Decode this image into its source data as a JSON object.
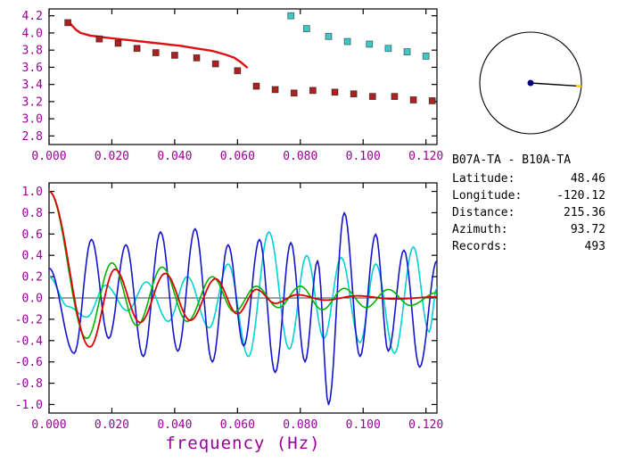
{
  "colors": {
    "axis_text": "#990099",
    "frame": "#000000",
    "compass_dot": "#000080",
    "compass_tick": "#ffc800"
  },
  "info_panel": {
    "station_pair": "B07A-TA - B10A-TA",
    "rows": [
      {
        "label": "Latitude:",
        "value": "48.46"
      },
      {
        "label": "Longitude:",
        "value": "-120.12"
      },
      {
        "label": "Distance:",
        "value": "215.36"
      },
      {
        "label": "Azimuth:",
        "value": "93.72"
      },
      {
        "label": "Records:",
        "value": "493"
      }
    ]
  },
  "compass": {
    "azimuth_deg": 93.72
  },
  "chart_data": [
    {
      "id": "dispersion",
      "type": "scatter",
      "title": "",
      "xlabel": "",
      "ylabel": "",
      "xlim": [
        0,
        0.1235
      ],
      "ylim": [
        2.7,
        4.28
      ],
      "grid": false,
      "xtick_values": [
        0.0,
        0.02,
        0.04,
        0.06,
        0.08,
        0.1,
        0.12
      ],
      "xtick_labels": [
        "0.000",
        "0.020",
        "0.040",
        "0.060",
        "0.080",
        "0.100",
        "0.120"
      ],
      "ytick_values": [
        2.8,
        3.0,
        3.2,
        3.4,
        3.6,
        3.8,
        4.0,
        4.2
      ],
      "ytick_labels": [
        "2.8",
        "3.0",
        "3.2",
        "3.4",
        "3.6",
        "3.8",
        "4.0",
        "4.2"
      ],
      "series": [
        {
          "name": "reference-curve",
          "kind": "line",
          "color": "#dd1111",
          "width": 2.4,
          "points": [
            [
              0.007,
              4.1
            ],
            [
              0.0085,
              4.04
            ],
            [
              0.01,
              4.0
            ],
            [
              0.013,
              3.97
            ],
            [
              0.017,
              3.95
            ],
            [
              0.022,
              3.93
            ],
            [
              0.027,
              3.91
            ],
            [
              0.032,
              3.89
            ],
            [
              0.037,
              3.87
            ],
            [
              0.042,
              3.85
            ],
            [
              0.047,
              3.82
            ],
            [
              0.052,
              3.79
            ],
            [
              0.056,
              3.75
            ],
            [
              0.059,
              3.71
            ],
            [
              0.061,
              3.66
            ],
            [
              0.063,
              3.6
            ]
          ]
        },
        {
          "name": "measured-dispersion",
          "kind": "squares",
          "color": "#aa2222",
          "size": 7,
          "points": [
            [
              0.006,
              4.12
            ],
            [
              0.016,
              3.93
            ],
            [
              0.022,
              3.88
            ],
            [
              0.028,
              3.82
            ],
            [
              0.034,
              3.77
            ],
            [
              0.04,
              3.74
            ],
            [
              0.047,
              3.71
            ],
            [
              0.053,
              3.64
            ],
            [
              0.06,
              3.56
            ],
            [
              0.066,
              3.38
            ],
            [
              0.072,
              3.34
            ],
            [
              0.078,
              3.3
            ],
            [
              0.084,
              3.33
            ],
            [
              0.091,
              3.31
            ],
            [
              0.097,
              3.29
            ],
            [
              0.103,
              3.26
            ],
            [
              0.11,
              3.26
            ],
            [
              0.116,
              3.22
            ],
            [
              0.122,
              3.21
            ]
          ]
        },
        {
          "name": "secondary-dispersion",
          "kind": "squares",
          "color": "#3fc8c8",
          "size": 7,
          "points": [
            [
              0.077,
              4.2
            ],
            [
              0.082,
              4.05
            ],
            [
              0.089,
              3.96
            ],
            [
              0.095,
              3.9
            ],
            [
              0.102,
              3.87
            ],
            [
              0.108,
              3.82
            ],
            [
              0.114,
              3.78
            ],
            [
              0.12,
              3.73
            ]
          ]
        }
      ]
    },
    {
      "id": "waveforms",
      "type": "line",
      "title": "",
      "xlabel": "frequency (Hz)",
      "ylabel": "",
      "xlim": [
        0,
        0.1235
      ],
      "ylim": [
        -1.08,
        1.08
      ],
      "grid": false,
      "zero_line": true,
      "xtick_values": [
        0.0,
        0.02,
        0.04,
        0.06,
        0.08,
        0.1,
        0.12
      ],
      "xtick_labels": [
        "0.000",
        "0.020",
        "0.040",
        "0.060",
        "0.080",
        "0.100",
        "0.120"
      ],
      "ytick_values": [
        -1.0,
        -0.8,
        -0.6,
        -0.4,
        -0.2,
        0.0,
        0.2,
        0.4,
        0.6,
        0.8,
        1.0
      ],
      "ytick_labels": [
        "-1.0",
        "-0.8",
        "-0.6",
        "-0.4",
        "-0.2",
        "0.0",
        "0.2",
        "0.4",
        "0.6",
        "0.8",
        "1.0"
      ],
      "series": [
        {
          "name": "trace-cyan",
          "kind": "wave",
          "color": "#00d2d2",
          "width": 1.6,
          "points": [
            [
              0,
              0.2
            ],
            [
              0.006,
              -0.08
            ],
            [
              0.012,
              -0.18
            ],
            [
              0.018,
              0.12
            ],
            [
              0.025,
              -0.12
            ],
            [
              0.031,
              0.15
            ],
            [
              0.038,
              -0.22
            ],
            [
              0.044,
              0.2
            ],
            [
              0.051,
              -0.28
            ],
            [
              0.057,
              0.32
            ],
            [
              0.0635,
              -0.55
            ],
            [
              0.07,
              0.62
            ],
            [
              0.0765,
              -0.48
            ],
            [
              0.082,
              0.4
            ],
            [
              0.0875,
              -0.38
            ],
            [
              0.093,
              0.38
            ],
            [
              0.099,
              -0.42
            ],
            [
              0.104,
              0.32
            ],
            [
              0.11,
              -0.52
            ],
            [
              0.116,
              0.48
            ],
            [
              0.121,
              -0.32
            ],
            [
              0.1235,
              0.1
            ]
          ]
        },
        {
          "name": "trace-blue",
          "kind": "wave",
          "color": "#1414cc",
          "width": 1.6,
          "points": [
            [
              0,
              0.28
            ],
            [
              0.008,
              -0.52
            ],
            [
              0.0135,
              0.55
            ],
            [
              0.019,
              -0.38
            ],
            [
              0.0245,
              0.5
            ],
            [
              0.03,
              -0.55
            ],
            [
              0.0355,
              0.62
            ],
            [
              0.041,
              -0.5
            ],
            [
              0.0465,
              0.65
            ],
            [
              0.052,
              -0.6
            ],
            [
              0.057,
              0.5
            ],
            [
              0.062,
              -0.45
            ],
            [
              0.067,
              0.55
            ],
            [
              0.072,
              -0.7
            ],
            [
              0.077,
              0.52
            ],
            [
              0.0815,
              -0.6
            ],
            [
              0.0855,
              0.35
            ],
            [
              0.089,
              -1.0
            ],
            [
              0.094,
              0.8
            ],
            [
              0.099,
              -0.55
            ],
            [
              0.104,
              0.6
            ],
            [
              0.108,
              -0.5
            ],
            [
              0.113,
              0.45
            ],
            [
              0.118,
              -0.65
            ],
            [
              0.1235,
              0.35
            ]
          ]
        },
        {
          "name": "trace-green",
          "kind": "wave",
          "color": "#00b400",
          "width": 1.6,
          "points": [
            [
              0,
              1.0
            ],
            [
              0.012,
              -0.38
            ],
            [
              0.02,
              0.33
            ],
            [
              0.028,
              -0.26
            ],
            [
              0.036,
              0.29
            ],
            [
              0.044,
              -0.22
            ],
            [
              0.052,
              0.2
            ],
            [
              0.059,
              -0.13
            ],
            [
              0.066,
              0.11
            ],
            [
              0.073,
              -0.09
            ],
            [
              0.08,
              0.11
            ],
            [
              0.087,
              -0.11
            ],
            [
              0.094,
              0.09
            ],
            [
              0.101,
              -0.09
            ],
            [
              0.108,
              0.08
            ],
            [
              0.115,
              -0.07
            ],
            [
              0.1235,
              0.05
            ]
          ]
        },
        {
          "name": "trace-red",
          "kind": "wave",
          "color": "#dd0000",
          "width": 1.8,
          "points": [
            [
              0,
              1.0
            ],
            [
              0.013,
              -0.46
            ],
            [
              0.021,
              0.27
            ],
            [
              0.029,
              -0.23
            ],
            [
              0.037,
              0.23
            ],
            [
              0.045,
              -0.21
            ],
            [
              0.053,
              0.18
            ],
            [
              0.06,
              -0.15
            ],
            [
              0.066,
              0.08
            ],
            [
              0.072,
              -0.05
            ],
            [
              0.079,
              0.03
            ],
            [
              0.088,
              -0.02
            ],
            [
              0.098,
              0.02
            ],
            [
              0.11,
              -0.01
            ],
            [
              0.1235,
              0.01
            ]
          ]
        }
      ]
    }
  ]
}
